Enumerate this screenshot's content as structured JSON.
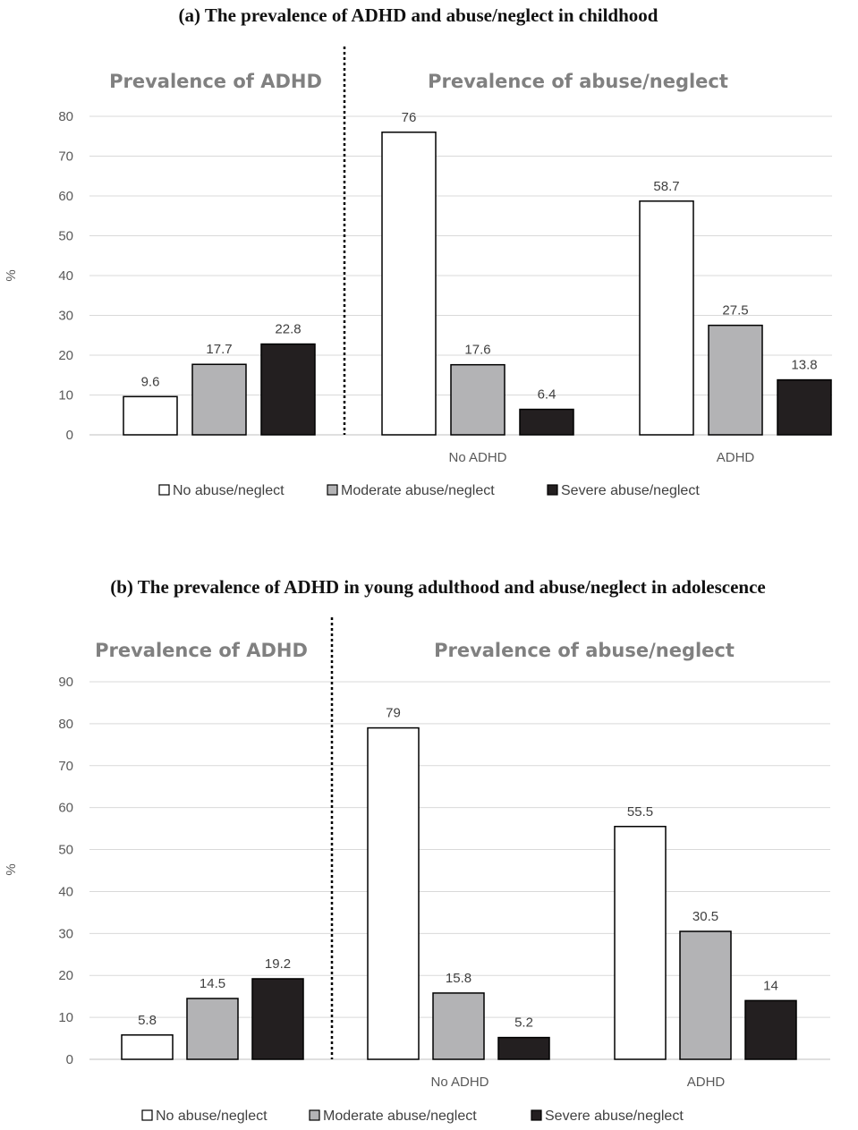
{
  "chart_data": [
    {
      "type": "bar",
      "title": "(a) The prevalence of ADHD and abuse/neglect in childhood",
      "ylabel": "%",
      "ylim": [
        0,
        80
      ],
      "yticks": [
        0,
        10,
        20,
        30,
        40,
        50,
        60,
        70,
        80
      ],
      "grid": true,
      "legend_position": "bottom",
      "section_labels": [
        "Prevalence of ADHD",
        "Prevalence of abuse/neglect"
      ],
      "categories": [
        "",
        "No ADHD",
        "ADHD"
      ],
      "series": [
        {
          "name": "No abuse/neglect",
          "color": "#ffffff",
          "values": [
            9.6,
            76,
            58.7
          ]
        },
        {
          "name": "Moderate abuse/neglect",
          "color": "#b3b3b5",
          "values": [
            17.7,
            17.6,
            27.5
          ]
        },
        {
          "name": "Severe abuse/neglect",
          "color": "#231f20",
          "values": [
            22.8,
            6.4,
            13.8
          ]
        }
      ]
    },
    {
      "type": "bar",
      "title": "(b) The prevalence of ADHD in young adulthood and abuse/neglect in adolescence",
      "ylabel": "%",
      "ylim": [
        0,
        90
      ],
      "yticks": [
        0,
        10,
        20,
        30,
        40,
        50,
        60,
        70,
        80,
        90
      ],
      "grid": true,
      "legend_position": "bottom",
      "section_labels": [
        "Prevalence of ADHD",
        "Prevalence of abuse/neglect"
      ],
      "categories": [
        "",
        "No ADHD",
        "ADHD"
      ],
      "series": [
        {
          "name": "No abuse/neglect",
          "color": "#ffffff",
          "values": [
            5.8,
            79,
            55.5
          ]
        },
        {
          "name": "Moderate abuse/neglect",
          "color": "#b3b3b5",
          "values": [
            14.5,
            15.8,
            30.5
          ]
        },
        {
          "name": "Severe abuse/neglect",
          "color": "#231f20",
          "values": [
            19.2,
            5.2,
            14
          ]
        }
      ]
    }
  ]
}
